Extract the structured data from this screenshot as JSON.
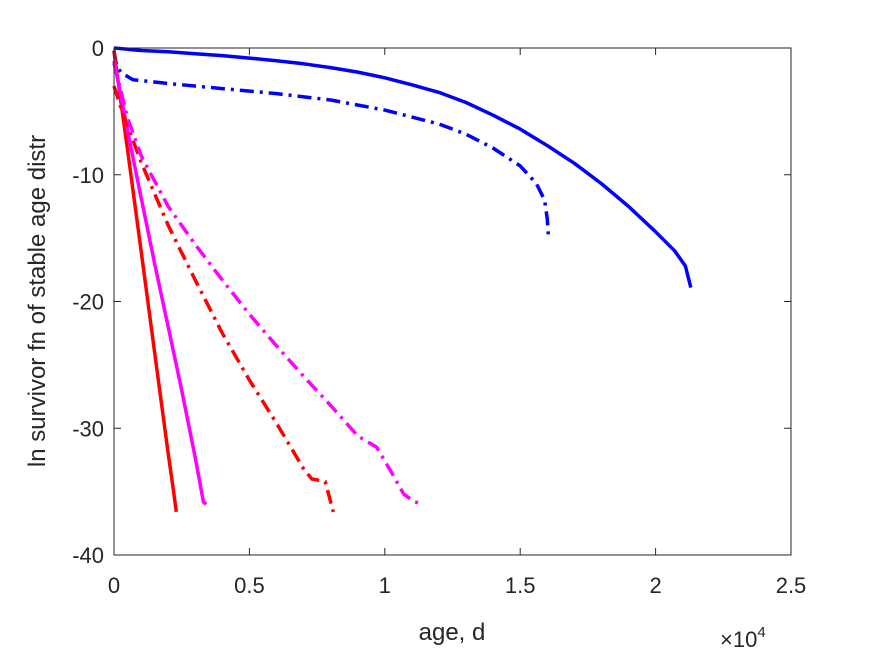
{
  "chart_data": {
    "type": "line",
    "title": "",
    "xlabel": "age, d",
    "ylabel": "ln survivor fn of stable age distr",
    "x_exponent_label": "×10",
    "x_exponent_power": "4",
    "xlim": [
      0,
      25000
    ],
    "ylim": [
      -40,
      0
    ],
    "xticks": [
      0,
      5000,
      10000,
      15000,
      20000,
      25000
    ],
    "xtick_labels": [
      "0",
      "0.5",
      "1",
      "1.5",
      "2",
      "2.5"
    ],
    "yticks": [
      0,
      -10,
      -20,
      -30,
      -40
    ],
    "ytick_labels": [
      "0",
      "-10",
      "-20",
      "-30",
      "-40"
    ],
    "grid": false,
    "legend": "none",
    "series": [
      {
        "color": "#0000ff",
        "style": "solid",
        "points": [
          [
            0,
            0
          ],
          [
            1000,
            -0.2
          ],
          [
            2000,
            -0.3
          ],
          [
            3000,
            -0.45
          ],
          [
            4000,
            -0.6
          ],
          [
            5000,
            -0.8
          ],
          [
            6000,
            -1.0
          ],
          [
            7000,
            -1.25
          ],
          [
            8000,
            -1.55
          ],
          [
            9000,
            -1.9
          ],
          [
            10000,
            -2.35
          ],
          [
            11000,
            -2.9
          ],
          [
            12000,
            -3.5
          ],
          [
            13000,
            -4.3
          ],
          [
            14000,
            -5.3
          ],
          [
            15000,
            -6.4
          ],
          [
            16000,
            -7.7
          ],
          [
            17000,
            -9.1
          ],
          [
            18000,
            -10.7
          ],
          [
            19000,
            -12.5
          ],
          [
            20000,
            -14.5
          ],
          [
            20700,
            -16.0
          ],
          [
            21100,
            -17.2
          ],
          [
            21300,
            -18.9
          ]
        ]
      },
      {
        "color": "#0000ff",
        "style": "dashdot",
        "points": [
          [
            0,
            -0.2
          ],
          [
            100,
            -1.5
          ],
          [
            300,
            -2.0
          ],
          [
            700,
            -2.5
          ],
          [
            2000,
            -2.8
          ],
          [
            4000,
            -3.2
          ],
          [
            6000,
            -3.6
          ],
          [
            8000,
            -4.1
          ],
          [
            10000,
            -4.9
          ],
          [
            12000,
            -6.0
          ],
          [
            13000,
            -6.8
          ],
          [
            14000,
            -7.9
          ],
          [
            15000,
            -9.3
          ],
          [
            15600,
            -10.7
          ],
          [
            15900,
            -12.0
          ],
          [
            16000,
            -13.5
          ],
          [
            16050,
            -15.1
          ]
        ]
      },
      {
        "color": "#ff0000",
        "style": "solid",
        "points": [
          [
            0,
            -0.3
          ],
          [
            500,
            -8.0
          ],
          [
            1000,
            -16.0
          ],
          [
            1500,
            -24.0
          ],
          [
            2000,
            -32.0
          ],
          [
            2200,
            -35.0
          ],
          [
            2300,
            -36.6
          ]
        ]
      },
      {
        "color": "#ff00ff",
        "style": "solid",
        "points": [
          [
            0,
            -1.0
          ],
          [
            500,
            -6.5
          ],
          [
            1000,
            -11.8
          ],
          [
            1500,
            -17.0
          ],
          [
            2000,
            -22.0
          ],
          [
            2500,
            -27.0
          ],
          [
            3000,
            -32.3
          ],
          [
            3300,
            -35.8
          ],
          [
            3400,
            -36.0
          ]
        ]
      },
      {
        "color": "#ff0000",
        "style": "dashdot",
        "points": [
          [
            0,
            -3.0
          ],
          [
            300,
            -5.0
          ],
          [
            1000,
            -9.0
          ],
          [
            2000,
            -14.0
          ],
          [
            3000,
            -18.3
          ],
          [
            4000,
            -22.5
          ],
          [
            5000,
            -26.2
          ],
          [
            6000,
            -29.6
          ],
          [
            7000,
            -33.2
          ],
          [
            7300,
            -34.0
          ],
          [
            7800,
            -34.2
          ],
          [
            8100,
            -36.6
          ]
        ]
      },
      {
        "color": "#ff00ff",
        "style": "dashdot",
        "points": [
          [
            0,
            -1.2
          ],
          [
            500,
            -5.5
          ],
          [
            1000,
            -8.5
          ],
          [
            2000,
            -12.5
          ],
          [
            3000,
            -15.5
          ],
          [
            4000,
            -18.3
          ],
          [
            5000,
            -21.0
          ],
          [
            6000,
            -23.5
          ],
          [
            7000,
            -25.9
          ],
          [
            8000,
            -28.2
          ],
          [
            9000,
            -30.6
          ],
          [
            9700,
            -31.5
          ],
          [
            10200,
            -33.3
          ],
          [
            10700,
            -35.2
          ],
          [
            11100,
            -35.8
          ],
          [
            11400,
            -36.0
          ]
        ]
      }
    ]
  }
}
